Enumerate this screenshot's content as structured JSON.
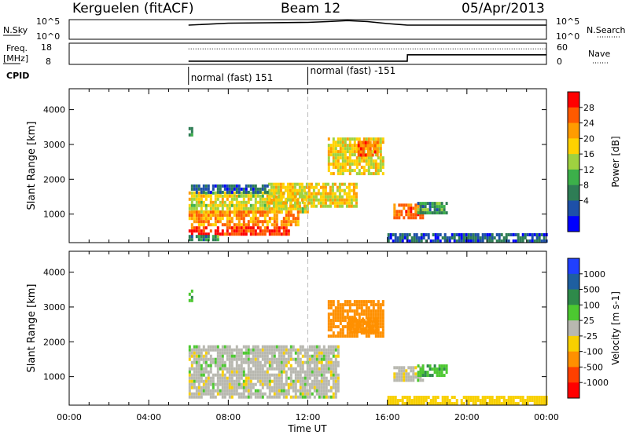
{
  "header": {
    "station": "Kerguelen (fitACF)",
    "beam": "Beam 12",
    "date": "05/Apr/2013"
  },
  "noise_panel": {
    "left_label": "N.Sky",
    "left_ticks": [
      "10^5",
      "10^0"
    ],
    "right_label": "N.Search",
    "right_ticks": [
      "10^5",
      "10^0"
    ]
  },
  "freq_panel": {
    "left_label_line1": "Freq.",
    "left_label_line2": "[MHz]",
    "left_ticks": [
      "18",
      "8"
    ],
    "right_label": "Nave",
    "right_ticks": [
      "60",
      "0"
    ]
  },
  "cpid": {
    "label": "CPID",
    "segments": [
      {
        "start_hour": 6.0,
        "text": "normal (fast) 151"
      },
      {
        "start_hour": 12.0,
        "text": "normal (fast) -151"
      }
    ]
  },
  "time_axis": {
    "label": "Time UT",
    "range_hours": [
      0,
      24
    ],
    "ticks": [
      "00:00",
      "04:00",
      "08:00",
      "12:00",
      "16:00",
      "20:00",
      "00:00"
    ],
    "tick_hours": [
      0,
      4,
      8,
      12,
      16,
      20,
      24
    ]
  },
  "range_axis": {
    "label": "Slant Range [km]",
    "range_km": [
      180,
      4600
    ],
    "ticks": [
      "1000",
      "2000",
      "3000",
      "4000"
    ],
    "tick_values": [
      1000,
      2000,
      3000,
      4000
    ]
  },
  "power_colorbar": {
    "label": "Power [dB]",
    "ticks": [
      "28",
      "24",
      "20",
      "16",
      "12",
      "8",
      "4"
    ],
    "tick_values": [
      28,
      24,
      20,
      16,
      12,
      8,
      4
    ],
    "range": [
      0,
      30
    ],
    "colors": [
      "#0000ff",
      "#1e50a8",
      "#2e7d55",
      "#3cb04a",
      "#9fd240",
      "#ffd200",
      "#ff9c00",
      "#ff5a00",
      "#ff0000"
    ]
  },
  "velocity_colorbar": {
    "label": "Velocity [m s-1]",
    "ticks": [
      "1000",
      "500",
      "100",
      "25",
      "-25",
      "-100",
      "-500",
      "-1000"
    ],
    "colors": [
      "#2040ff",
      "#1e5fa0",
      "#2e8a4a",
      "#4cc830",
      "#b8b8b0",
      "#f8d000",
      "#ff9000",
      "#ff4000",
      "#ff0000"
    ]
  },
  "chart_data": [
    {
      "type": "line",
      "name": "noise",
      "x_hours": [
        6.0,
        8.0,
        10.0,
        12.0,
        13.0,
        14.0,
        15.0,
        16.0,
        17.0,
        20.0,
        24.0
      ],
      "y_level": [
        0.72,
        0.82,
        0.84,
        0.86,
        0.9,
        0.95,
        0.9,
        0.8,
        0.72,
        0.72,
        0.72
      ]
    },
    {
      "type": "line",
      "name": "frequency_nave",
      "freq_x_hours": [
        6.0,
        17.0,
        17.01,
        24.0
      ],
      "freq_mhz": [
        9.5,
        9.5,
        12.5,
        12.5
      ],
      "nave_x_hours": [
        6.0,
        24.0
      ],
      "nave": [
        44,
        44
      ]
    },
    {
      "type": "heatmap",
      "name": "power",
      "value_unit": "dB",
      "blobs": [
        {
          "t": [
            6.0,
            12.0
          ],
          "r": [
            1050,
            1650
          ],
          "v": 17
        },
        {
          "t": [
            6.0,
            11.5
          ],
          "r": [
            700,
            1100
          ],
          "v": 22
        },
        {
          "t": [
            6.0,
            11.0
          ],
          "r": [
            450,
            650
          ],
          "v": 27
        },
        {
          "t": [
            6.0,
            7.5
          ],
          "r": [
            250,
            400
          ],
          "v": 10
        },
        {
          "t": [
            10.0,
            14.5
          ],
          "r": [
            1200,
            1900
          ],
          "v": 18
        },
        {
          "t": [
            13.0,
            15.8
          ],
          "r": [
            2200,
            3200
          ],
          "v": 18
        },
        {
          "t": [
            14.5,
            15.5
          ],
          "r": [
            2700,
            3100
          ],
          "v": 24
        },
        {
          "t": [
            16.3,
            17.8
          ],
          "r": [
            850,
            1300
          ],
          "v": 24
        },
        {
          "t": [
            17.5,
            19.0
          ],
          "r": [
            1000,
            1350
          ],
          "v": 10
        },
        {
          "t": [
            6.0,
            10.0
          ],
          "r": [
            1600,
            1850
          ],
          "v": 6
        },
        {
          "t": [
            16.0,
            24.0
          ],
          "r": [
            180,
            450
          ],
          "v": 6
        },
        {
          "t": [
            6.0,
            6.2
          ],
          "r": [
            3200,
            3500
          ],
          "v": 10
        }
      ]
    },
    {
      "type": "heatmap",
      "name": "velocity",
      "value_unit": "m s-1",
      "blobs": [
        {
          "t": [
            6.0,
            13.5
          ],
          "r": [
            400,
            1900
          ],
          "v": 0
        },
        {
          "t": [
            13.0,
            15.8
          ],
          "r": [
            2200,
            3200
          ],
          "v": -200
        },
        {
          "t": [
            14.0,
            15.5
          ],
          "r": [
            2300,
            2700
          ],
          "v": -400
        },
        {
          "t": [
            16.3,
            17.8
          ],
          "r": [
            850,
            1300
          ],
          "v": 0
        },
        {
          "t": [
            17.5,
            19.0
          ],
          "r": [
            1000,
            1350
          ],
          "v": 80
        },
        {
          "t": [
            16.0,
            24.0
          ],
          "r": [
            180,
            450
          ],
          "v": -60
        },
        {
          "t": [
            6.0,
            6.2
          ],
          "r": [
            3200,
            3500
          ],
          "v": 80
        }
      ]
    }
  ]
}
